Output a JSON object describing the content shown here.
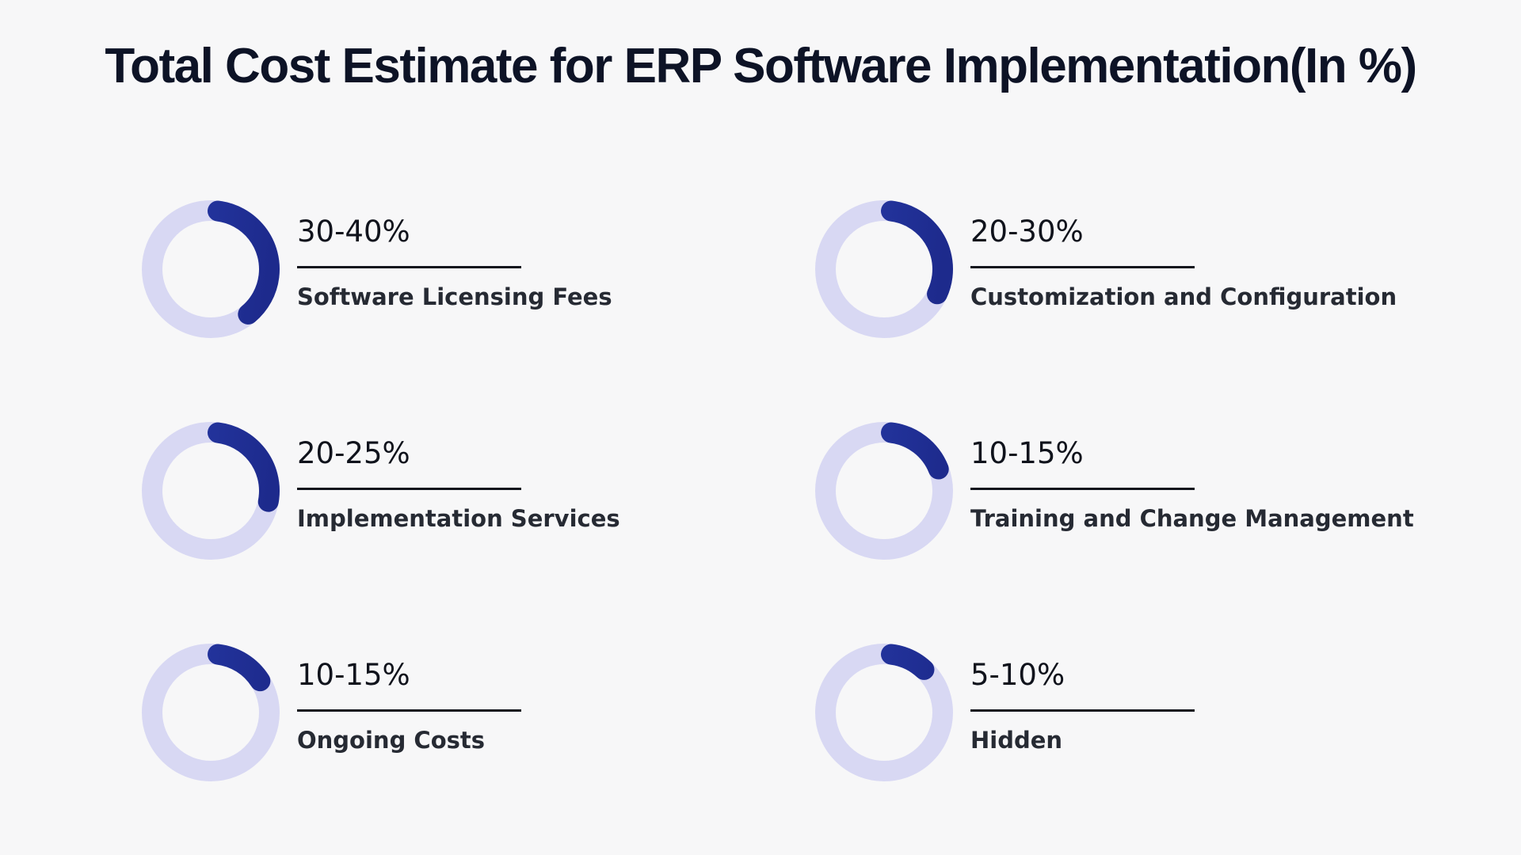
{
  "title": "Total Cost Estimate for ERP Software Implementation(In %)",
  "colors": {
    "background": "#f7f7f8",
    "ring_track": "#d8d8f3",
    "ring_fill": "#2639a6",
    "ring_fill_dark": "#1d2a8c",
    "text": "#10131c"
  },
  "chart_data": {
    "type": "donut",
    "title": "Total Cost Estimate for ERP Software Implementation(In %)",
    "unit": "%",
    "items": [
      {
        "value_label": "30-40%",
        "label": "Software Licensing Fees",
        "low": 30,
        "high": 40,
        "fill_fraction": 0.37
      },
      {
        "value_label": "20-30%",
        "label": "Customization and Configuration",
        "low": 20,
        "high": 30,
        "fill_fraction": 0.3
      },
      {
        "value_label": "20-25%",
        "label": "Implementation Services",
        "low": 20,
        "high": 25,
        "fill_fraction": 0.26
      },
      {
        "value_label": "10-15%",
        "label": "Training and Change Management",
        "low": 10,
        "high": 15,
        "fill_fraction": 0.17
      },
      {
        "value_label": "10-15%",
        "label": "Ongoing Costs",
        "low": 10,
        "high": 15,
        "fill_fraction": 0.14
      },
      {
        "value_label": "5-10%",
        "label": "Hidden",
        "low": 5,
        "high": 10,
        "fill_fraction": 0.1
      }
    ]
  }
}
